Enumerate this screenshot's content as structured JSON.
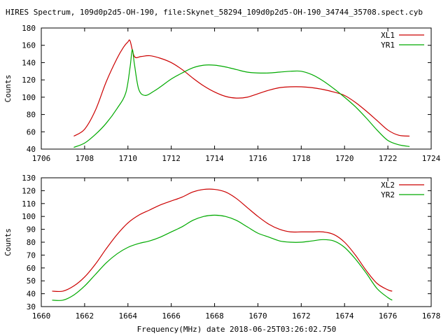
{
  "title": "HIRES Spectrum, 109d0p2d5-OH-190, file:Skynet_58294_109d0p2d5-OH-190_34744_35708.spect.cyb",
  "xlabel": "Frequency(MHz) date 2018-06-25T03:26:02.750",
  "colors": {
    "red": "#cc0000",
    "green": "#00aa00"
  },
  "chart_data": [
    {
      "type": "line",
      "ylabel": "Counts",
      "xlim": [
        1706,
        1724
      ],
      "ylim": [
        40,
        180
      ],
      "xticks": [
        1706,
        1708,
        1710,
        1712,
        1714,
        1716,
        1718,
        1720,
        1722,
        1724
      ],
      "yticks": [
        40,
        60,
        80,
        100,
        120,
        140,
        160,
        180
      ],
      "legend": "top-right",
      "series": [
        {
          "name": "XL1",
          "color": "#cc0000",
          "x": [
            1707.5,
            1708.0,
            1708.5,
            1709.0,
            1709.5,
            1709.8,
            1710.0,
            1710.1,
            1710.3,
            1710.6,
            1711.0,
            1711.5,
            1712.0,
            1712.5,
            1713.0,
            1713.5,
            1714.0,
            1714.5,
            1715.0,
            1715.5,
            1716.0,
            1716.5,
            1717.0,
            1717.5,
            1718.0,
            1718.5,
            1719.0,
            1719.5,
            1720.0,
            1720.5,
            1721.0,
            1721.5,
            1722.0,
            1722.5,
            1723.0
          ],
          "y": [
            55,
            63,
            85,
            118,
            145,
            158,
            164,
            165,
            147,
            147,
            148,
            145,
            140,
            132,
            122,
            113,
            106,
            101,
            99,
            100,
            104,
            108,
            111,
            112,
            112,
            111,
            109,
            106,
            102,
            94,
            84,
            73,
            62,
            56,
            55
          ]
        },
        {
          "name": "YR1",
          "color": "#00aa00",
          "x": [
            1707.5,
            1708.0,
            1708.5,
            1709.0,
            1709.5,
            1709.9,
            1710.1,
            1710.2,
            1710.3,
            1710.5,
            1710.8,
            1711.2,
            1711.5,
            1712.0,
            1712.5,
            1713.0,
            1713.5,
            1714.0,
            1714.5,
            1715.0,
            1715.5,
            1716.0,
            1716.5,
            1717.0,
            1717.5,
            1718.0,
            1718.5,
            1719.0,
            1719.5,
            1720.0,
            1720.5,
            1721.0,
            1721.5,
            1722.0,
            1722.5,
            1723.0
          ],
          "y": [
            42,
            47,
            57,
            70,
            87,
            105,
            135,
            155,
            138,
            109,
            102,
            107,
            112,
            121,
            128,
            134,
            137,
            137,
            135,
            132,
            129,
            128,
            128,
            129,
            130,
            130,
            126,
            119,
            110,
            100,
            89,
            76,
            62,
            50,
            45,
            43
          ]
        }
      ]
    },
    {
      "type": "line",
      "ylabel": "Counts",
      "xlim": [
        1660,
        1678
      ],
      "ylim": [
        30,
        130
      ],
      "xticks": [
        1660,
        1662,
        1664,
        1666,
        1668,
        1670,
        1672,
        1674,
        1676,
        1678
      ],
      "yticks": [
        30,
        40,
        50,
        60,
        70,
        80,
        90,
        100,
        110,
        120,
        130
      ],
      "legend": "top-right",
      "series": [
        {
          "name": "XL2",
          "color": "#cc0000",
          "x": [
            1660.5,
            1661.0,
            1661.5,
            1662.0,
            1662.5,
            1663.0,
            1663.5,
            1664.0,
            1664.5,
            1665.0,
            1665.5,
            1666.0,
            1666.5,
            1667.0,
            1667.5,
            1668.0,
            1668.5,
            1669.0,
            1669.5,
            1670.0,
            1670.5,
            1671.0,
            1671.5,
            1672.0,
            1672.5,
            1673.0,
            1673.5,
            1674.0,
            1674.5,
            1675.0,
            1675.5,
            1676.0,
            1676.2
          ],
          "y": [
            42,
            42,
            46,
            53,
            63,
            75,
            86,
            95,
            101,
            105,
            109,
            112,
            115,
            119,
            121,
            121,
            119,
            114,
            107,
            100,
            94,
            90,
            88,
            88,
            88,
            88,
            86,
            80,
            70,
            58,
            48,
            43,
            42
          ]
        },
        {
          "name": "YR2",
          "color": "#00aa00",
          "x": [
            1660.5,
            1661.0,
            1661.5,
            1662.0,
            1662.5,
            1663.0,
            1663.5,
            1664.0,
            1664.5,
            1665.0,
            1665.5,
            1666.0,
            1666.5,
            1667.0,
            1667.5,
            1668.0,
            1668.5,
            1669.0,
            1669.5,
            1670.0,
            1670.5,
            1671.0,
            1671.5,
            1672.0,
            1672.5,
            1673.0,
            1673.5,
            1674.0,
            1674.5,
            1675.0,
            1675.5,
            1676.0,
            1676.2
          ],
          "y": [
            35,
            35,
            39,
            46,
            55,
            64,
            71,
            76,
            79,
            81,
            84,
            88,
            92,
            97,
            100,
            101,
            100,
            97,
            92,
            87,
            84,
            81,
            80,
            80,
            81,
            82,
            81,
            76,
            67,
            56,
            44,
            37,
            35
          ]
        }
      ]
    }
  ]
}
